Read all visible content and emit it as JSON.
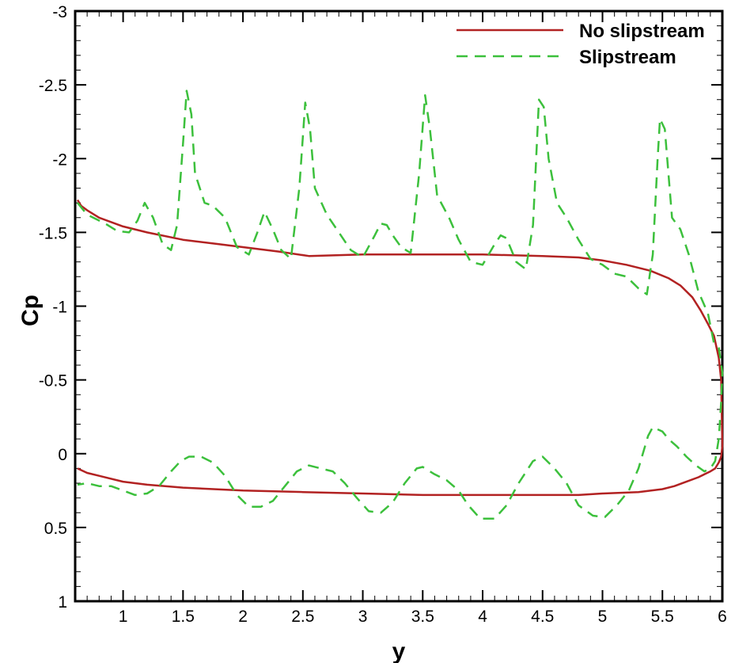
{
  "chart_data": {
    "type": "line",
    "title": "",
    "xlabel": "y",
    "ylabel": "Cp",
    "xlim": [
      0.6,
      6.0
    ],
    "ylim": [
      1,
      -3
    ],
    "y_reversed": true,
    "x_ticks": [
      "1",
      "1.5",
      "2",
      "2.5",
      "3",
      "3.5",
      "4",
      "4.5",
      "5",
      "5.5",
      "6"
    ],
    "x_tick_values": [
      1,
      1.5,
      2,
      2.5,
      3,
      3.5,
      4,
      4.5,
      5,
      5.5,
      6
    ],
    "y_ticks": [
      "-3",
      "-2.5",
      "-2",
      "-1.5",
      "-1",
      "-0.5",
      "0",
      "0.5",
      "1"
    ],
    "y_tick_values": [
      -3,
      -2.5,
      -2,
      -1.5,
      -1,
      -0.5,
      0,
      0.5,
      1
    ],
    "grid": false,
    "legend_position": "top-right",
    "colors": {
      "no_slipstream": "#b22222",
      "slipstream": "#3cc03c"
    },
    "series": [
      {
        "name": "No slipstream",
        "style": "solid",
        "x": [
          0.62,
          0.65,
          0.7,
          0.8,
          1.0,
          1.2,
          1.5,
          1.8,
          2.0,
          2.3,
          2.55,
          3.0,
          3.5,
          4.0,
          4.5,
          4.8,
          5.0,
          5.2,
          5.4,
          5.55,
          5.65,
          5.75,
          5.82,
          5.88,
          5.93,
          5.97,
          5.99,
          5.995,
          6.0,
          5.99,
          5.97,
          5.94,
          5.9,
          5.85,
          5.8,
          5.7,
          5.6,
          5.5,
          5.3,
          5.0,
          4.8,
          4.5,
          4.0,
          3.5,
          3.0,
          2.5,
          2.0,
          1.5,
          1.2,
          1.0,
          0.8,
          0.7,
          0.62
        ],
        "y": [
          -1.72,
          -1.68,
          -1.65,
          -1.6,
          -1.54,
          -1.5,
          -1.45,
          -1.42,
          -1.4,
          -1.37,
          -1.34,
          -1.35,
          -1.35,
          -1.35,
          -1.34,
          -1.33,
          -1.31,
          -1.28,
          -1.24,
          -1.19,
          -1.14,
          -1.06,
          -0.97,
          -0.88,
          -0.8,
          -0.65,
          -0.5,
          -0.3,
          -0.05,
          0.02,
          0.06,
          0.1,
          0.12,
          0.14,
          0.16,
          0.19,
          0.22,
          0.24,
          0.26,
          0.27,
          0.28,
          0.28,
          0.28,
          0.28,
          0.27,
          0.26,
          0.25,
          0.23,
          0.21,
          0.19,
          0.15,
          0.13,
          0.1
        ]
      },
      {
        "name": "Slipstream",
        "style": "dashed",
        "x": [
          0.62,
          0.7,
          0.85,
          0.95,
          1.05,
          1.12,
          1.18,
          1.25,
          1.33,
          1.4,
          1.45,
          1.5,
          1.53,
          1.57,
          1.6,
          1.68,
          1.75,
          1.85,
          1.95,
          2.05,
          2.12,
          2.18,
          2.25,
          2.32,
          2.4,
          2.47,
          2.52,
          2.56,
          2.6,
          2.7,
          2.8,
          2.9,
          3.0,
          3.1,
          3.15,
          3.2,
          3.25,
          3.32,
          3.4,
          3.47,
          3.52,
          3.56,
          3.62,
          3.72,
          3.8,
          3.9,
          4.0,
          4.1,
          4.15,
          4.2,
          4.28,
          4.36,
          4.42,
          4.47,
          4.51,
          4.55,
          4.62,
          4.7,
          4.8,
          4.9,
          5.0,
          5.1,
          5.2,
          5.3,
          5.37,
          5.42,
          5.46,
          5.48,
          5.52,
          5.58,
          5.65,
          5.72,
          5.8,
          5.88,
          5.93,
          5.97,
          6.0,
          5.99,
          5.97,
          5.94,
          5.9,
          5.85,
          5.78,
          5.7,
          5.62,
          5.55,
          5.5,
          5.42,
          5.38,
          5.3,
          5.22,
          5.12,
          5.02,
          4.92,
          4.8,
          4.7,
          4.6,
          4.5,
          4.42,
          4.3,
          4.2,
          4.1,
          3.98,
          3.88,
          3.8,
          3.7,
          3.6,
          3.5,
          3.45,
          3.35,
          3.25,
          3.15,
          3.05,
          2.95,
          2.85,
          2.75,
          2.65,
          2.55,
          2.45,
          2.35,
          2.25,
          2.15,
          2.05,
          1.95,
          1.85,
          1.75,
          1.65,
          1.55,
          1.48,
          1.4,
          1.3,
          1.2,
          1.1,
          1.0,
          0.9,
          0.8,
          0.7,
          0.62
        ],
        "y": [
          -1.7,
          -1.62,
          -1.56,
          -1.51,
          -1.5,
          -1.58,
          -1.7,
          -1.6,
          -1.42,
          -1.38,
          -1.55,
          -2.1,
          -2.46,
          -2.3,
          -1.9,
          -1.7,
          -1.68,
          -1.6,
          -1.4,
          -1.35,
          -1.5,
          -1.64,
          -1.52,
          -1.38,
          -1.32,
          -1.8,
          -2.38,
          -2.2,
          -1.8,
          -1.62,
          -1.5,
          -1.38,
          -1.33,
          -1.48,
          -1.56,
          -1.55,
          -1.48,
          -1.4,
          -1.36,
          -1.9,
          -2.43,
          -2.2,
          -1.75,
          -1.6,
          -1.45,
          -1.3,
          -1.28,
          -1.42,
          -1.48,
          -1.46,
          -1.3,
          -1.25,
          -1.55,
          -2.4,
          -2.35,
          -2.0,
          -1.7,
          -1.6,
          -1.45,
          -1.32,
          -1.28,
          -1.22,
          -1.2,
          -1.12,
          -1.08,
          -1.35,
          -2.0,
          -2.27,
          -2.2,
          -1.6,
          -1.52,
          -1.35,
          -1.1,
          -0.95,
          -0.75,
          -0.72,
          -0.55,
          -0.35,
          -0.1,
          0.05,
          0.1,
          0.12,
          0.08,
          0.02,
          -0.05,
          -0.1,
          -0.15,
          -0.18,
          -0.12,
          0.1,
          0.25,
          0.35,
          0.43,
          0.42,
          0.35,
          0.2,
          0.1,
          0.02,
          0.05,
          0.2,
          0.35,
          0.44,
          0.44,
          0.35,
          0.25,
          0.18,
          0.14,
          0.09,
          0.1,
          0.2,
          0.33,
          0.4,
          0.39,
          0.3,
          0.2,
          0.12,
          0.1,
          0.08,
          0.12,
          0.22,
          0.32,
          0.36,
          0.36,
          0.28,
          0.15,
          0.06,
          0.02,
          0.02,
          0.05,
          0.12,
          0.22,
          0.27,
          0.28,
          0.25,
          0.22,
          0.22,
          0.2,
          0.21
        ]
      }
    ]
  }
}
